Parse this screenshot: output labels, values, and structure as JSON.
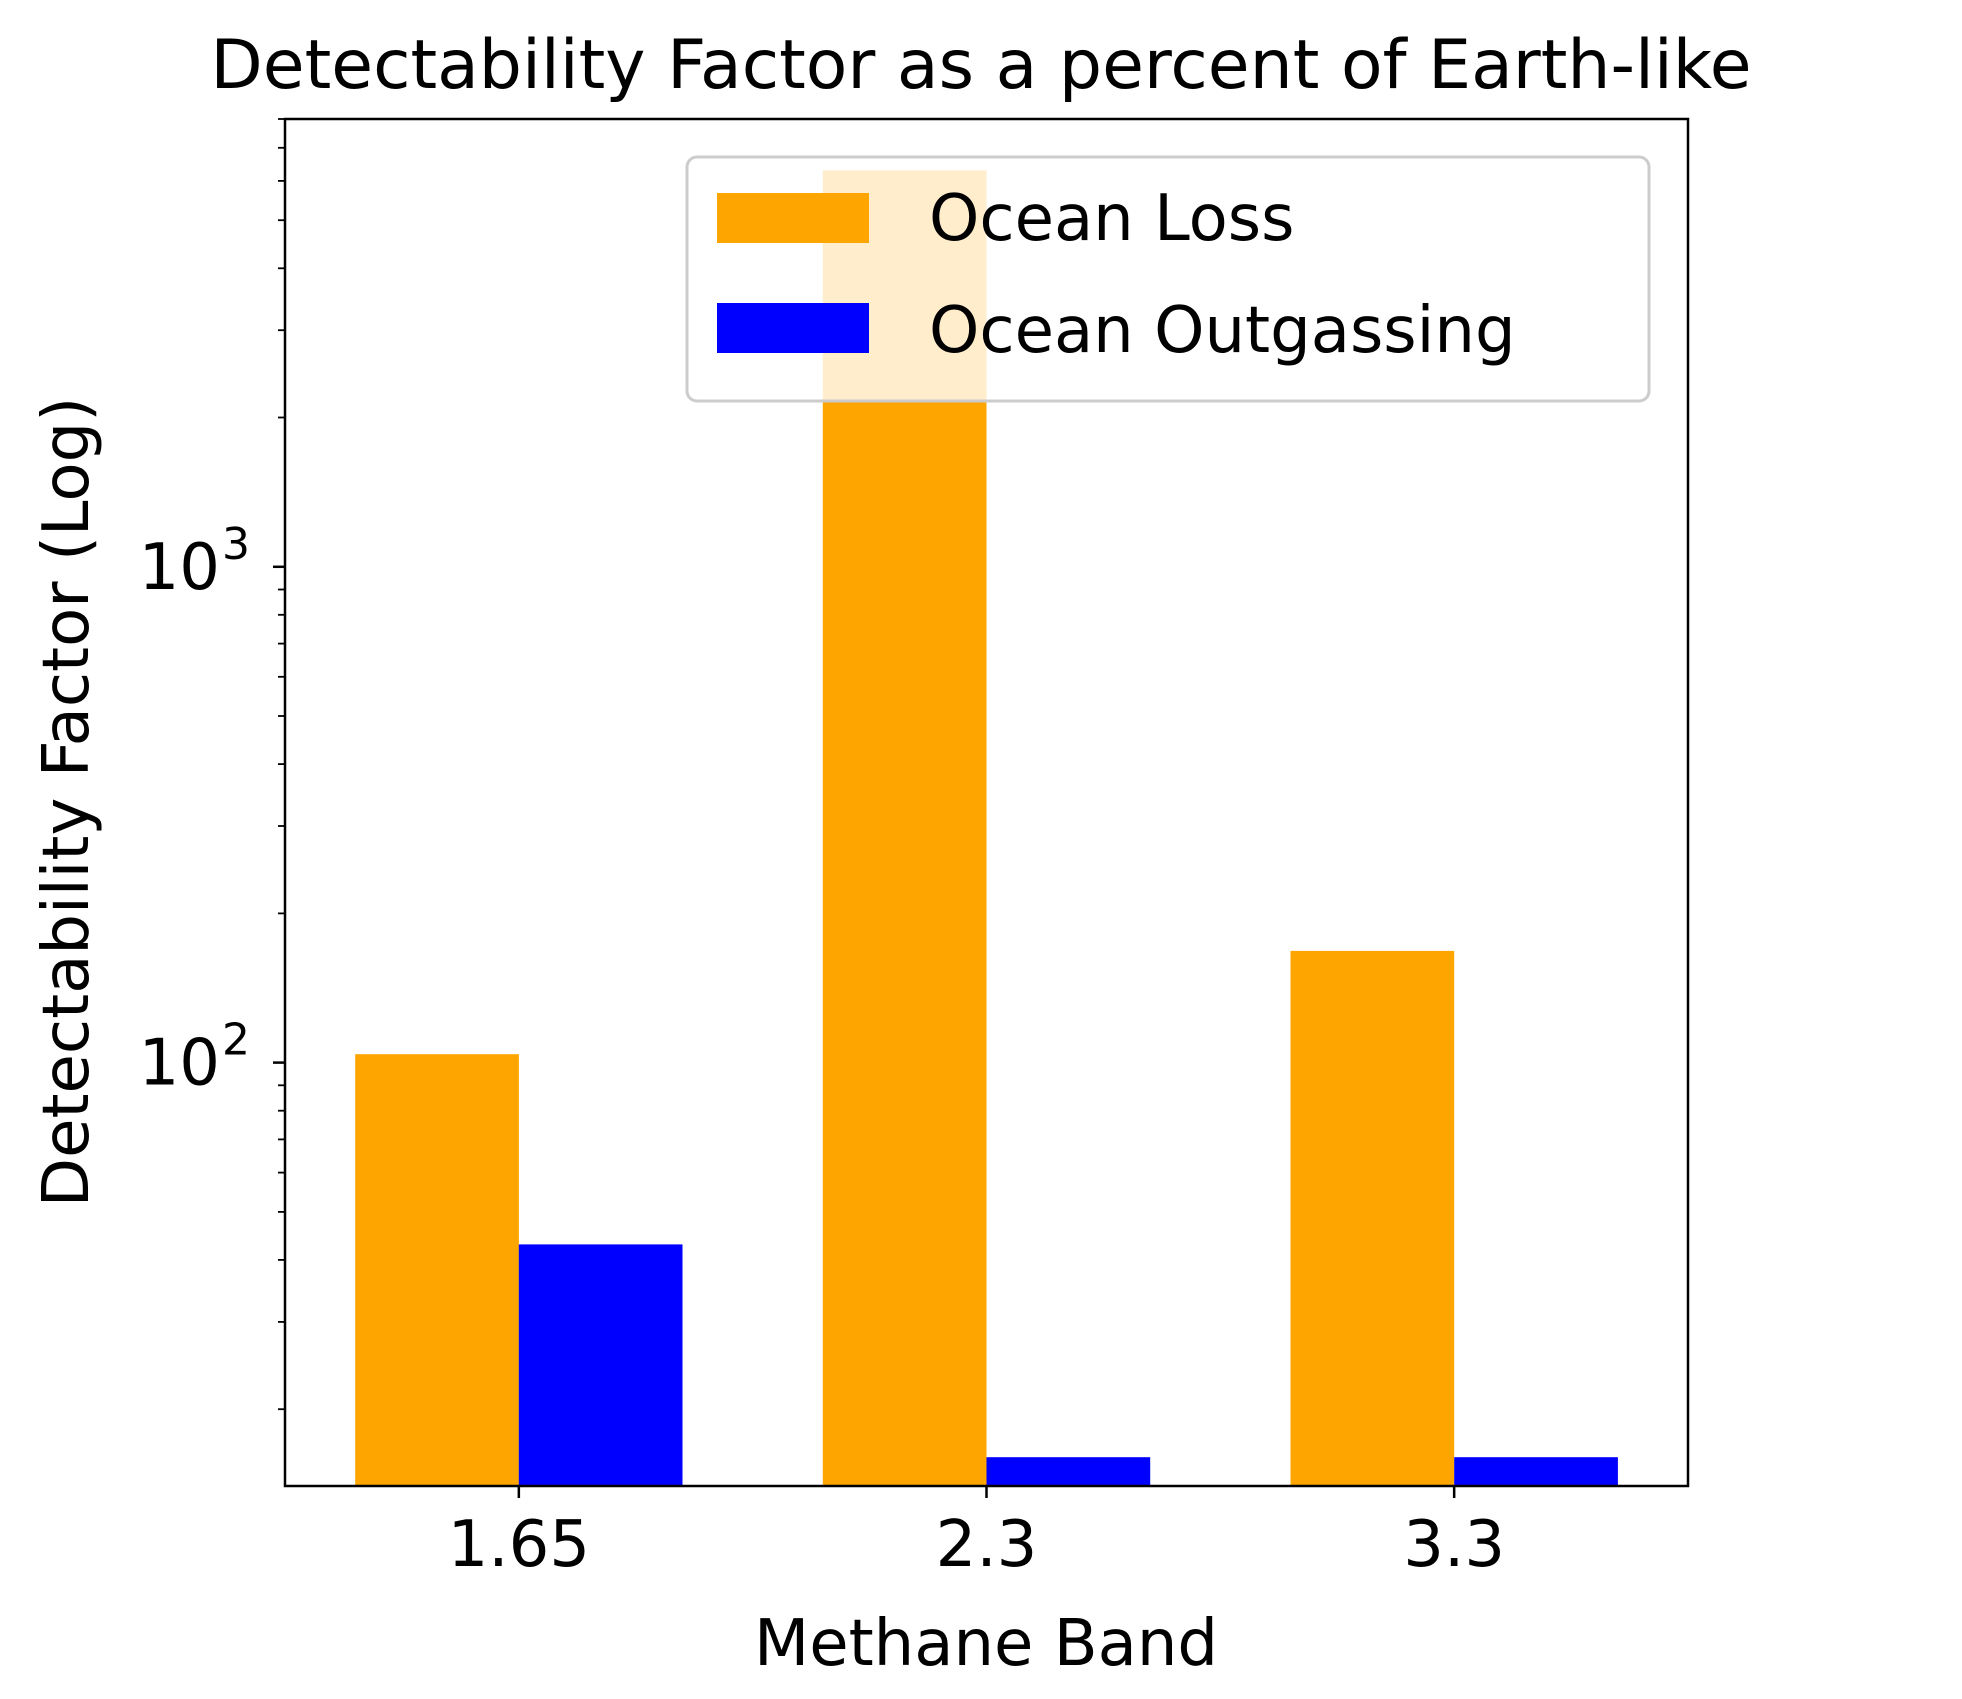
{
  "chart_data": {
    "type": "bar",
    "title": "Detectability Factor as a percent of Earth-like",
    "xlabel": "Methane Band",
    "ylabel": "Detectability Factor (Log)",
    "y_scale": "log",
    "ylim": [
      14,
      8000
    ],
    "categories": [
      "1.65",
      "2.3",
      "3.3"
    ],
    "series": [
      {
        "name": "Ocean Loss",
        "color": "#FFA500",
        "values": [
          104,
          6300,
          168
        ]
      },
      {
        "name": "Ocean Outgassing",
        "color": "#0000FF",
        "values": [
          43,
          16,
          16
        ]
      }
    ],
    "y_major_ticks": [
      {
        "value": 100,
        "base": "10",
        "exp": "2"
      },
      {
        "value": 1000,
        "base": "10",
        "exp": "3"
      }
    ],
    "legend": {
      "position": "top-right"
    },
    "grid": false
  }
}
